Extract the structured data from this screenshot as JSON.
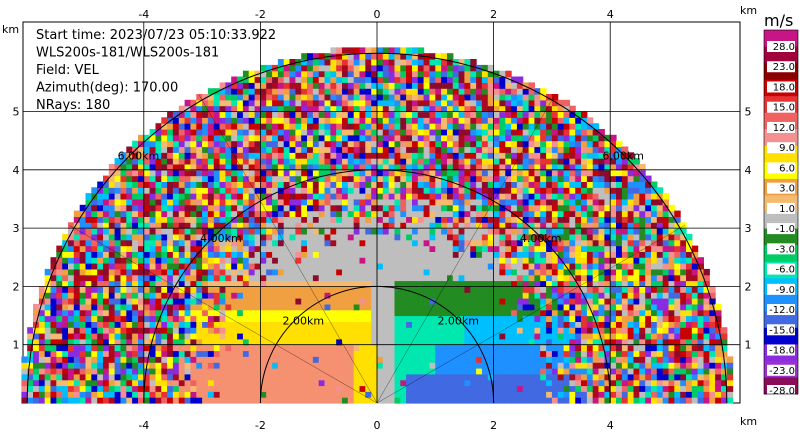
{
  "info": {
    "lines": [
      "Start time: 2023/07/23 05:10:33.922",
      "WLS200s-181/WLS200s-181",
      "Field: VEL",
      "Azimuth(deg): 170.00",
      "NRays: 180"
    ]
  },
  "colorbar": {
    "unit": "m/s",
    "labels": [
      "28.0",
      "23.0",
      "18.0",
      "15.0",
      "12.0",
      "9.0",
      "6.0",
      "3.0",
      "1.0",
      "-1.0",
      "-3.0",
      "-6.0",
      "-9.0",
      "-12.0",
      "-15.0",
      "-18.0",
      "-23.0",
      "-28.0"
    ]
  },
  "chart_data": {
    "type": "heatmap",
    "description": "RHI scan of Doppler radial velocity (polar sector)",
    "xunit": "km",
    "yunit": "km",
    "xlim": [
      -6,
      6.2
    ],
    "ylim": [
      0,
      6
    ],
    "x_ticks": [
      -4,
      -2,
      0,
      2,
      4
    ],
    "y_ticks": [
      1,
      2,
      3,
      4,
      5
    ],
    "range_rings_km": [
      2,
      4,
      6
    ],
    "range_ring_labels": [
      "2.00km",
      "4.00km",
      "6.00km"
    ],
    "grid": true
  },
  "colors": {
    "palette": [
      "#8b0a2e",
      "#aa0a20",
      "#c80000",
      "#e63232",
      "#f06262",
      "#f59090",
      "#ffe000",
      "#ffff00",
      "#f0a040",
      "#f4bb70",
      "#bebebe",
      "#228b22",
      "#00cc66",
      "#00e8b0",
      "#00bfff",
      "#1e90ff",
      "#4169e1",
      "#0000cd",
      "#8a2be2",
      "#c71585"
    ],
    "colorbar": [
      "#c71585",
      "#a0003c",
      "#8b0000",
      "#c80000",
      "#e63232",
      "#f06262",
      "#f59090",
      "#ffe000",
      "#ffff00",
      "#f0a040",
      "#f4bb70",
      "#bebebe",
      "#228b22",
      "#00cc66",
      "#00e8b0",
      "#00bfff",
      "#1e90ff",
      "#4169e1",
      "#0000cd",
      "#8a2be2",
      "#9932cc",
      "#8b0a5a"
    ]
  }
}
